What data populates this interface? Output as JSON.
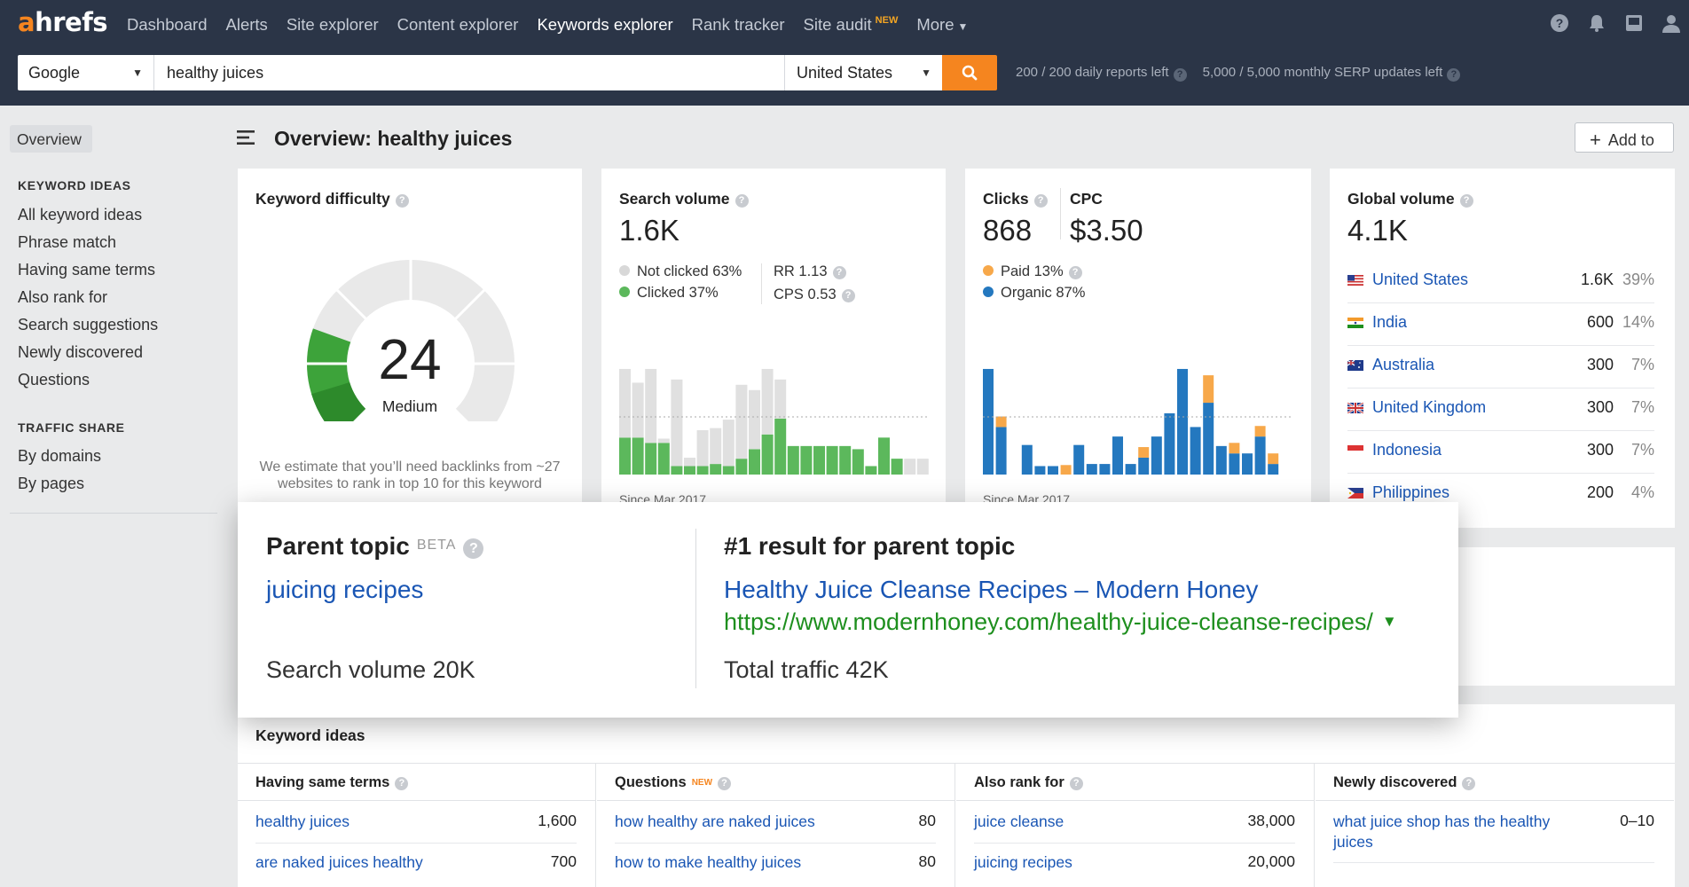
{
  "nav": {
    "logo_a": "a",
    "logo_rest": "hrefs",
    "items": [
      {
        "label": "Dashboard"
      },
      {
        "label": "Alerts"
      },
      {
        "label": "Site explorer"
      },
      {
        "label": "Content explorer"
      },
      {
        "label": "Keywords explorer",
        "active": true
      },
      {
        "label": "Rank tracker"
      },
      {
        "label": "Site audit",
        "badge": "NEW"
      },
      {
        "label": "More"
      }
    ],
    "icons": [
      "help-icon",
      "bell-icon",
      "inbox-icon",
      "user-icon"
    ]
  },
  "search": {
    "engine": "Google",
    "keyword": "healthy juices",
    "country": "United States",
    "daily_reports": "200 / 200 daily reports left",
    "serp_updates": "5,000 / 5,000 monthly SERP updates left"
  },
  "sidebar": {
    "overview": "Overview",
    "keyword_ideas_heading": "KEYWORD IDEAS",
    "keyword_ideas": [
      "All keyword ideas",
      "Phrase match",
      "Having same terms",
      "Also rank for",
      "Search suggestions",
      "Newly discovered",
      "Questions"
    ],
    "traffic_share_heading": "TRAFFIC SHARE",
    "traffic_share": [
      "By domains",
      "By pages"
    ]
  },
  "header": {
    "title": "Overview: healthy juices",
    "add_to": "Add to"
  },
  "kd": {
    "title": "Keyword difficulty",
    "value": "24",
    "label": "Medium",
    "estimate": "We estimate that you’ll need backlinks from ~27 websites to rank in top 10 for this keyword"
  },
  "sv": {
    "title": "Search volume",
    "value": "1.6K",
    "not_clicked": "Not clicked 63%",
    "clicked": "Clicked 37%",
    "rr": "RR 1.13",
    "cps": "CPS 0.53",
    "since": "Since Mar 2017"
  },
  "clicks": {
    "title": "Clicks",
    "value": "868",
    "cpc_title": "CPC",
    "cpc_value": "$3.50",
    "paid": "Paid 13%",
    "organic": "Organic 87%",
    "since": "Since Mar 2017"
  },
  "global": {
    "title": "Global volume",
    "value": "4.1K",
    "rows": [
      {
        "country": "United States",
        "volume": "1.6K",
        "pct": "39%",
        "flag": "us-flag-icon"
      },
      {
        "country": "India",
        "volume": "600",
        "pct": "14%",
        "flag": "india-flag-icon"
      },
      {
        "country": "Australia",
        "volume": "300",
        "pct": "7%",
        "flag": "australia-flag-icon"
      },
      {
        "country": "United Kingdom",
        "volume": "300",
        "pct": "7%",
        "flag": "uk-flag-icon"
      },
      {
        "country": "Indonesia",
        "volume": "300",
        "pct": "7%",
        "flag": "indonesia-flag-icon"
      },
      {
        "country": "Philippines",
        "volume": "200",
        "pct": "4%",
        "flag": "philippines-flag-icon"
      }
    ]
  },
  "parent_topic": {
    "title": "Parent topic",
    "beta": "BETA",
    "keyword": "juicing recipes",
    "search_volume": "Search volume 20K",
    "result_title": "#1 result for parent topic",
    "result_page": "Healthy Juice Cleanse Recipes – Modern Honey",
    "result_url": "https://www.modernhoney.com/healthy-juice-cleanse-recipes/",
    "total_traffic": "Total traffic 42K"
  },
  "keyword_ideas": {
    "title": "Keyword ideas",
    "columns": [
      {
        "heading": "Having same terms",
        "rows": [
          {
            "kw": "healthy juices",
            "num": "1,600"
          },
          {
            "kw": "are naked juices healthy",
            "num": "700"
          }
        ]
      },
      {
        "heading": "Questions",
        "badge": "NEW",
        "rows": [
          {
            "kw": "how healthy are naked juices",
            "num": "80"
          },
          {
            "kw": "how to make healthy juices",
            "num": "80"
          }
        ]
      },
      {
        "heading": "Also rank for",
        "rows": [
          {
            "kw": "juice cleanse",
            "num": "38,000"
          },
          {
            "kw": "juicing recipes",
            "num": "20,000"
          }
        ]
      },
      {
        "heading": "Newly discovered",
        "rows": [
          {
            "kw": "what juice shop has the healthy juices",
            "num": "0–10"
          }
        ]
      }
    ]
  },
  "colors": {
    "nav_bg": "#2b3547",
    "accent_orange": "#f5851f",
    "link_blue": "#1a56b4",
    "url_green": "#1e8f1e",
    "kd_green": "#3da33a",
    "clicked_green": "#5cb85c",
    "not_clicked_gray": "#e0e0e0",
    "paid_orange": "#f7a84a",
    "organic_blue": "#2478bf"
  },
  "chart_data": [
    {
      "type": "bar",
      "name": "search-volume-history",
      "series": [
        {
          "name": "Clicked",
          "values": [
            3.5,
            3.5,
            3,
            3,
            0.8,
            0.8,
            0.8,
            1,
            0.8,
            1.5,
            2.4,
            3.8,
            5.3,
            2.7,
            2.7,
            2.7,
            2.7,
            2.7,
            2.4,
            0.8,
            3.5,
            1.5,
            0,
            0
          ]
        },
        {
          "name": "Not clicked",
          "values": [
            6.5,
            5.2,
            7,
            0.4,
            8.2,
            0.8,
            3.4,
            3.4,
            4.4,
            7,
            5.6,
            6.2,
            3.7,
            0,
            0,
            0,
            0,
            0,
            0,
            0,
            0,
            0,
            1.5,
            1.5
          ]
        }
      ]
    },
    {
      "type": "bar",
      "name": "clicks-history",
      "series": [
        {
          "name": "Organic",
          "values": [
            10,
            4.5,
            0,
            2.8,
            0.8,
            0.8,
            0,
            2.8,
            1,
            1,
            3.6,
            1,
            1.6,
            3.6,
            5.8,
            10,
            4.5,
            6.8,
            2.7,
            2,
            2,
            3.6,
            1,
            0
          ]
        },
        {
          "name": "Paid",
          "values": [
            0,
            1,
            0,
            0,
            0,
            0,
            0.9,
            0,
            0,
            0,
            0,
            0,
            1,
            0,
            0,
            0,
            0,
            2.6,
            0,
            1,
            0,
            1,
            1,
            0
          ]
        }
      ]
    }
  ]
}
